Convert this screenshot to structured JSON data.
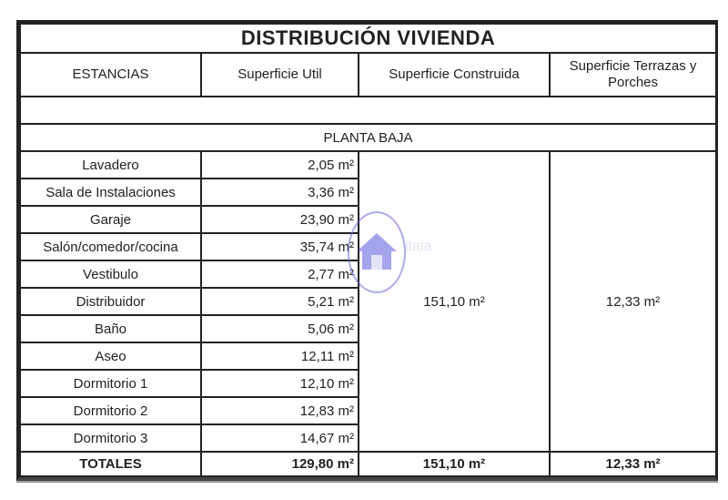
{
  "title": "DISTRIBUCIÓN VIVIENDA",
  "headers": [
    "ESTANCIAS",
    "Superficie Util",
    "Superficie Construida",
    "Superficie Terrazas y Porches"
  ],
  "section": "PLANTA BAJA",
  "rows": [
    {
      "room": "Lavadero",
      "util": "2,05 m²"
    },
    {
      "room": "Sala de Instalaciones",
      "util": "3,36 m²"
    },
    {
      "room": "Garaje",
      "util": "23,90 m²"
    },
    {
      "room": "Salón/comedor/cocina",
      "util": "35,74 m²"
    },
    {
      "room": "Vestibulo",
      "util": "2,77 m²"
    },
    {
      "room": "Distribuidor",
      "util": "5,21 m²"
    },
    {
      "room": "Baño",
      "util": "5,06 m²"
    },
    {
      "room": "Aseo",
      "util": "12,11 m²"
    },
    {
      "room": "Dormitorio 1",
      "util": "12,10 m²"
    },
    {
      "room": "Dormitorio 2",
      "util": "12,83 m²"
    },
    {
      "room": "Dormitorio 3",
      "util": "14,67 m²"
    }
  ],
  "construida": "151,10 m²",
  "terrazas": "12,33 m²",
  "totals": {
    "label": "TOTALES",
    "util": "129,80 m²",
    "construida": "151,10 m²",
    "terrazas": "12,33 m²"
  },
  "watermark": {
    "icon": "house-icon",
    "text": "itaia",
    "color": "#5a5adc"
  }
}
